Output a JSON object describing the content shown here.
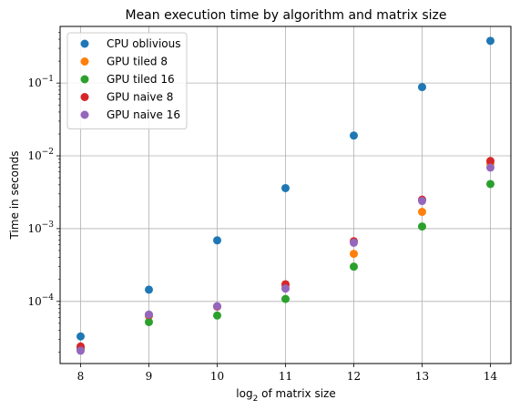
{
  "chart_data": {
    "type": "scatter",
    "title": "Mean execution time by algorithm and matrix size",
    "xlabel_prefix": "log",
    "xlabel_sub": "2",
    "xlabel_suffix": " of matrix size",
    "ylabel": "Time in seconds",
    "yscale": "log",
    "xlim": [
      7.7,
      14.3
    ],
    "ylim": [
      1.4e-05,
      0.6
    ],
    "xticks": [
      8,
      9,
      10,
      11,
      12,
      13,
      14
    ],
    "xtick_labels": [
      "8",
      "9",
      "10",
      "11",
      "12",
      "13",
      "14"
    ],
    "yticks": [
      0.0001,
      0.001,
      0.01,
      0.1
    ],
    "ytick_labels": [
      {
        "base": "10",
        "exp": "−4"
      },
      {
        "base": "10",
        "exp": "−3"
      },
      {
        "base": "10",
        "exp": "−2"
      },
      {
        "base": "10",
        "exp": "−1"
      }
    ],
    "grid": true,
    "legend_position": "top-left",
    "x": [
      8,
      9,
      10,
      11,
      12,
      13,
      14
    ],
    "series": [
      {
        "name": "CPU oblivious",
        "color": "#1f77b4",
        "values": [
          3.3e-05,
          0.000145,
          0.00069,
          0.0036,
          0.019,
          0.088,
          0.38
        ]
      },
      {
        "name": "GPU tiled 8",
        "color": "#ff7f0e",
        "values": [
          2.3e-05,
          6.3e-05,
          8.5e-05,
          0.000165,
          0.00045,
          0.0017,
          0.0078
        ]
      },
      {
        "name": "GPU tiled 16",
        "color": "#2ca02c",
        "values": [
          2.2e-05,
          5.2e-05,
          6.4e-05,
          0.000108,
          0.0003,
          0.00107,
          0.0041
        ]
      },
      {
        "name": "GPU naive 8",
        "color": "#d62728",
        "values": [
          2.4e-05,
          6.5e-05,
          8.5e-05,
          0.000172,
          0.00067,
          0.0025,
          0.0085
        ]
      },
      {
        "name": "GPU naive 16",
        "color": "#9467bd",
        "values": [
          2.1e-05,
          6.6e-05,
          8.6e-05,
          0.00015,
          0.00064,
          0.0024,
          0.0069
        ]
      }
    ]
  }
}
